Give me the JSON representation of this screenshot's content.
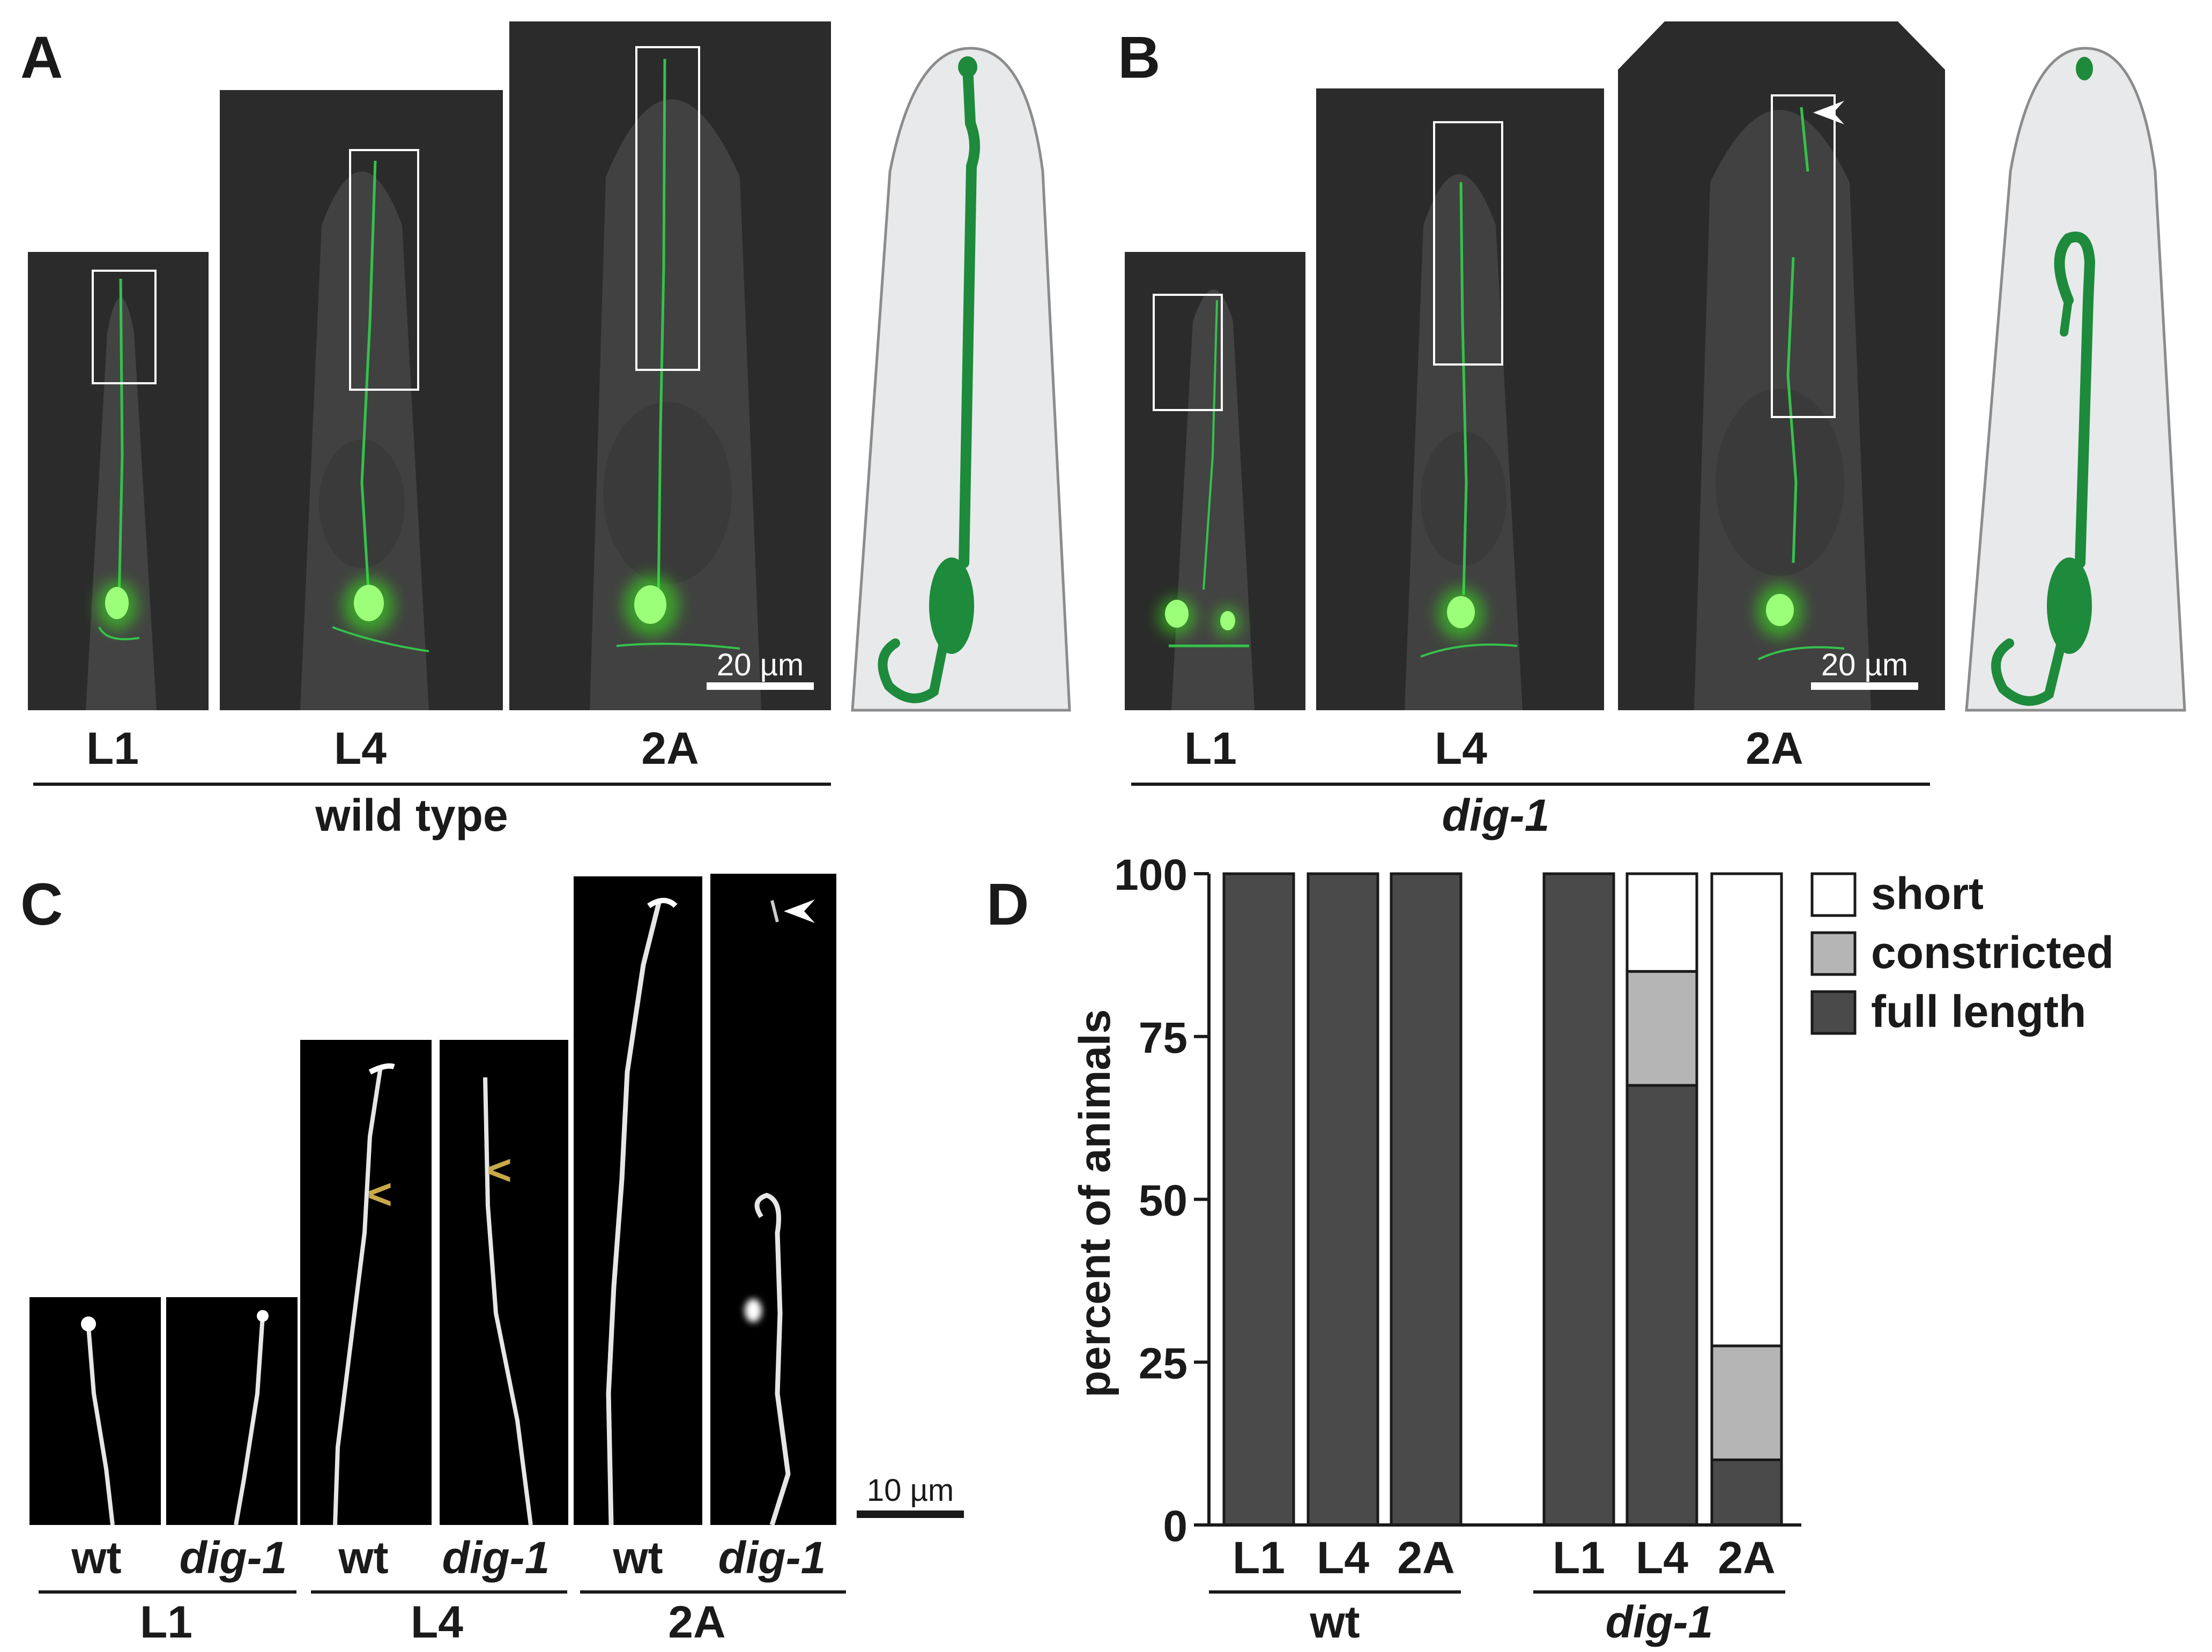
{
  "panelA": {
    "letter": "A",
    "stages": [
      "L1",
      "L4",
      "2A"
    ],
    "group": "wild type",
    "scalebar": "20 µm"
  },
  "panelB": {
    "letter": "B",
    "stages": [
      "L1",
      "L4",
      "2A"
    ],
    "group": "dig-1",
    "scalebar": "20 µm"
  },
  "panelC": {
    "letter": "C",
    "columns": [
      "wt",
      "dig-1",
      "wt",
      "dig-1",
      "wt",
      "dig-1"
    ],
    "stages": [
      "L1",
      "L4",
      "2A"
    ],
    "scalebar": "10 µm"
  },
  "panelD": {
    "letter": "D",
    "groups": [
      "wt",
      "dig-1"
    ]
  },
  "colors": {
    "neuron": "#1e8a3c",
    "micrograph_bg": "#2b2b2b",
    "worm_fill": "#e8e9ea",
    "full_length": "#4a4a4a",
    "constricted": "#b5b5b5",
    "short": "#ffffff"
  },
  "chart_data": {
    "type": "bar",
    "stacked": true,
    "categories": [
      "L1",
      "L4",
      "2A",
      "L1",
      "L4",
      "2A"
    ],
    "groups": [
      {
        "name": "wt",
        "categories": [
          "L1",
          "L4",
          "2A"
        ]
      },
      {
        "name": "dig-1",
        "categories": [
          "L1",
          "L4",
          "2A"
        ]
      }
    ],
    "series": [
      {
        "name": "full length",
        "values": [
          100,
          100,
          100,
          100,
          67.5,
          10
        ]
      },
      {
        "name": "constricted",
        "values": [
          0,
          0,
          0,
          0,
          17.5,
          17.5
        ]
      },
      {
        "name": "short",
        "values": [
          0,
          0,
          0,
          0,
          15,
          72.5
        ]
      }
    ],
    "legend_order": [
      "short",
      "constricted",
      "full length"
    ],
    "ylabel": "percent of animals",
    "yticks": [
      0,
      25,
      50,
      75,
      100
    ],
    "ylim": [
      0,
      100
    ],
    "legend_position": "top-right",
    "grid": false
  }
}
